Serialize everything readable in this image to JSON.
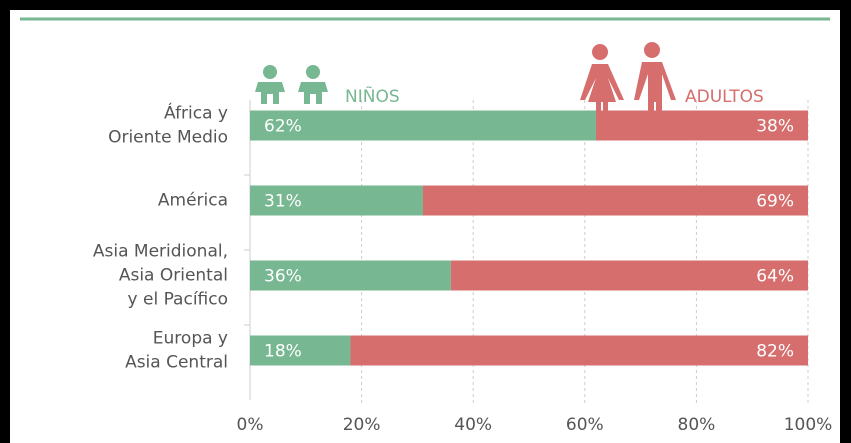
{
  "chart_data": {
    "type": "stacked-barh",
    "categories": [
      [
        "África y",
        "Oriente Medio"
      ],
      [
        "América"
      ],
      [
        "Asia Meridional,",
        "Asia Oriental",
        "y el Pacífico"
      ],
      [
        "Europa y",
        "Asia Central"
      ]
    ],
    "series": [
      {
        "name": "NIÑOS",
        "color": "#77b791",
        "values": [
          62,
          31,
          36,
          18
        ],
        "value_labels": [
          "62%",
          "31%",
          "36%",
          "18%"
        ]
      },
      {
        "name": "ADULTOS",
        "color": "#d66e6e",
        "values": [
          38,
          69,
          64,
          82
        ],
        "value_labels": [
          "38%",
          "69%",
          "64%",
          "82%"
        ]
      }
    ],
    "xlim": [
      0,
      100
    ],
    "xticks": [
      {
        "value": 0,
        "label": "0%"
      },
      {
        "value": 20,
        "label": "20%"
      },
      {
        "value": 40,
        "label": "40%"
      },
      {
        "value": 60,
        "label": "60%"
      },
      {
        "value": 80,
        "label": "80%"
      },
      {
        "value": 100,
        "label": "100%"
      }
    ],
    "grid": true
  }
}
